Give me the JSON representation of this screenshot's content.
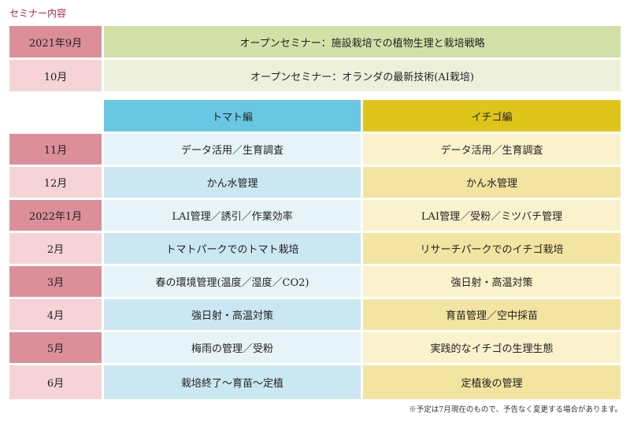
{
  "title": "セミナー内容",
  "open_seminars": [
    {
      "month": "2021年9月",
      "topic": "オープンセミナー：施設栽培での植物生理と栽培戦略"
    },
    {
      "month": "10月",
      "topic": "オープンセミナー：オランダの最新技術(AI栽培)"
    }
  ],
  "headers": {
    "tomato": "トマト編",
    "strawberry": "イチゴ編"
  },
  "rows": [
    {
      "month": "11月",
      "tomato": "データ活用／生育調査",
      "strawberry": "データ活用／生育調査"
    },
    {
      "month": "12月",
      "tomato": "かん水管理",
      "strawberry": "かん水管理"
    },
    {
      "month": "2022年1月",
      "tomato": "LAI管理／誘引／作業効率",
      "strawberry": "LAI管理／受粉／ミツバチ管理"
    },
    {
      "month": "2月",
      "tomato": "トマトパークでのトマト栽培",
      "strawberry": "リサーチパークでのイチゴ栽培"
    },
    {
      "month": "3月",
      "tomato": "春の環境管理(温度／湿度／CO2)",
      "strawberry": "強日射・高温対策"
    },
    {
      "month": "4月",
      "tomato": "強日射・高温対策",
      "strawberry": "育苗管理／空中採苗"
    },
    {
      "month": "5月",
      "tomato": "梅雨の管理／受粉",
      "strawberry": "実践的なイチゴの生理生態"
    },
    {
      "month": "6月",
      "tomato": "栽培終了〜育苗〜定植",
      "strawberry": "定植後の管理"
    }
  ],
  "note": "※予定は7月現在のもので、予告なく変更する場合があります。"
}
